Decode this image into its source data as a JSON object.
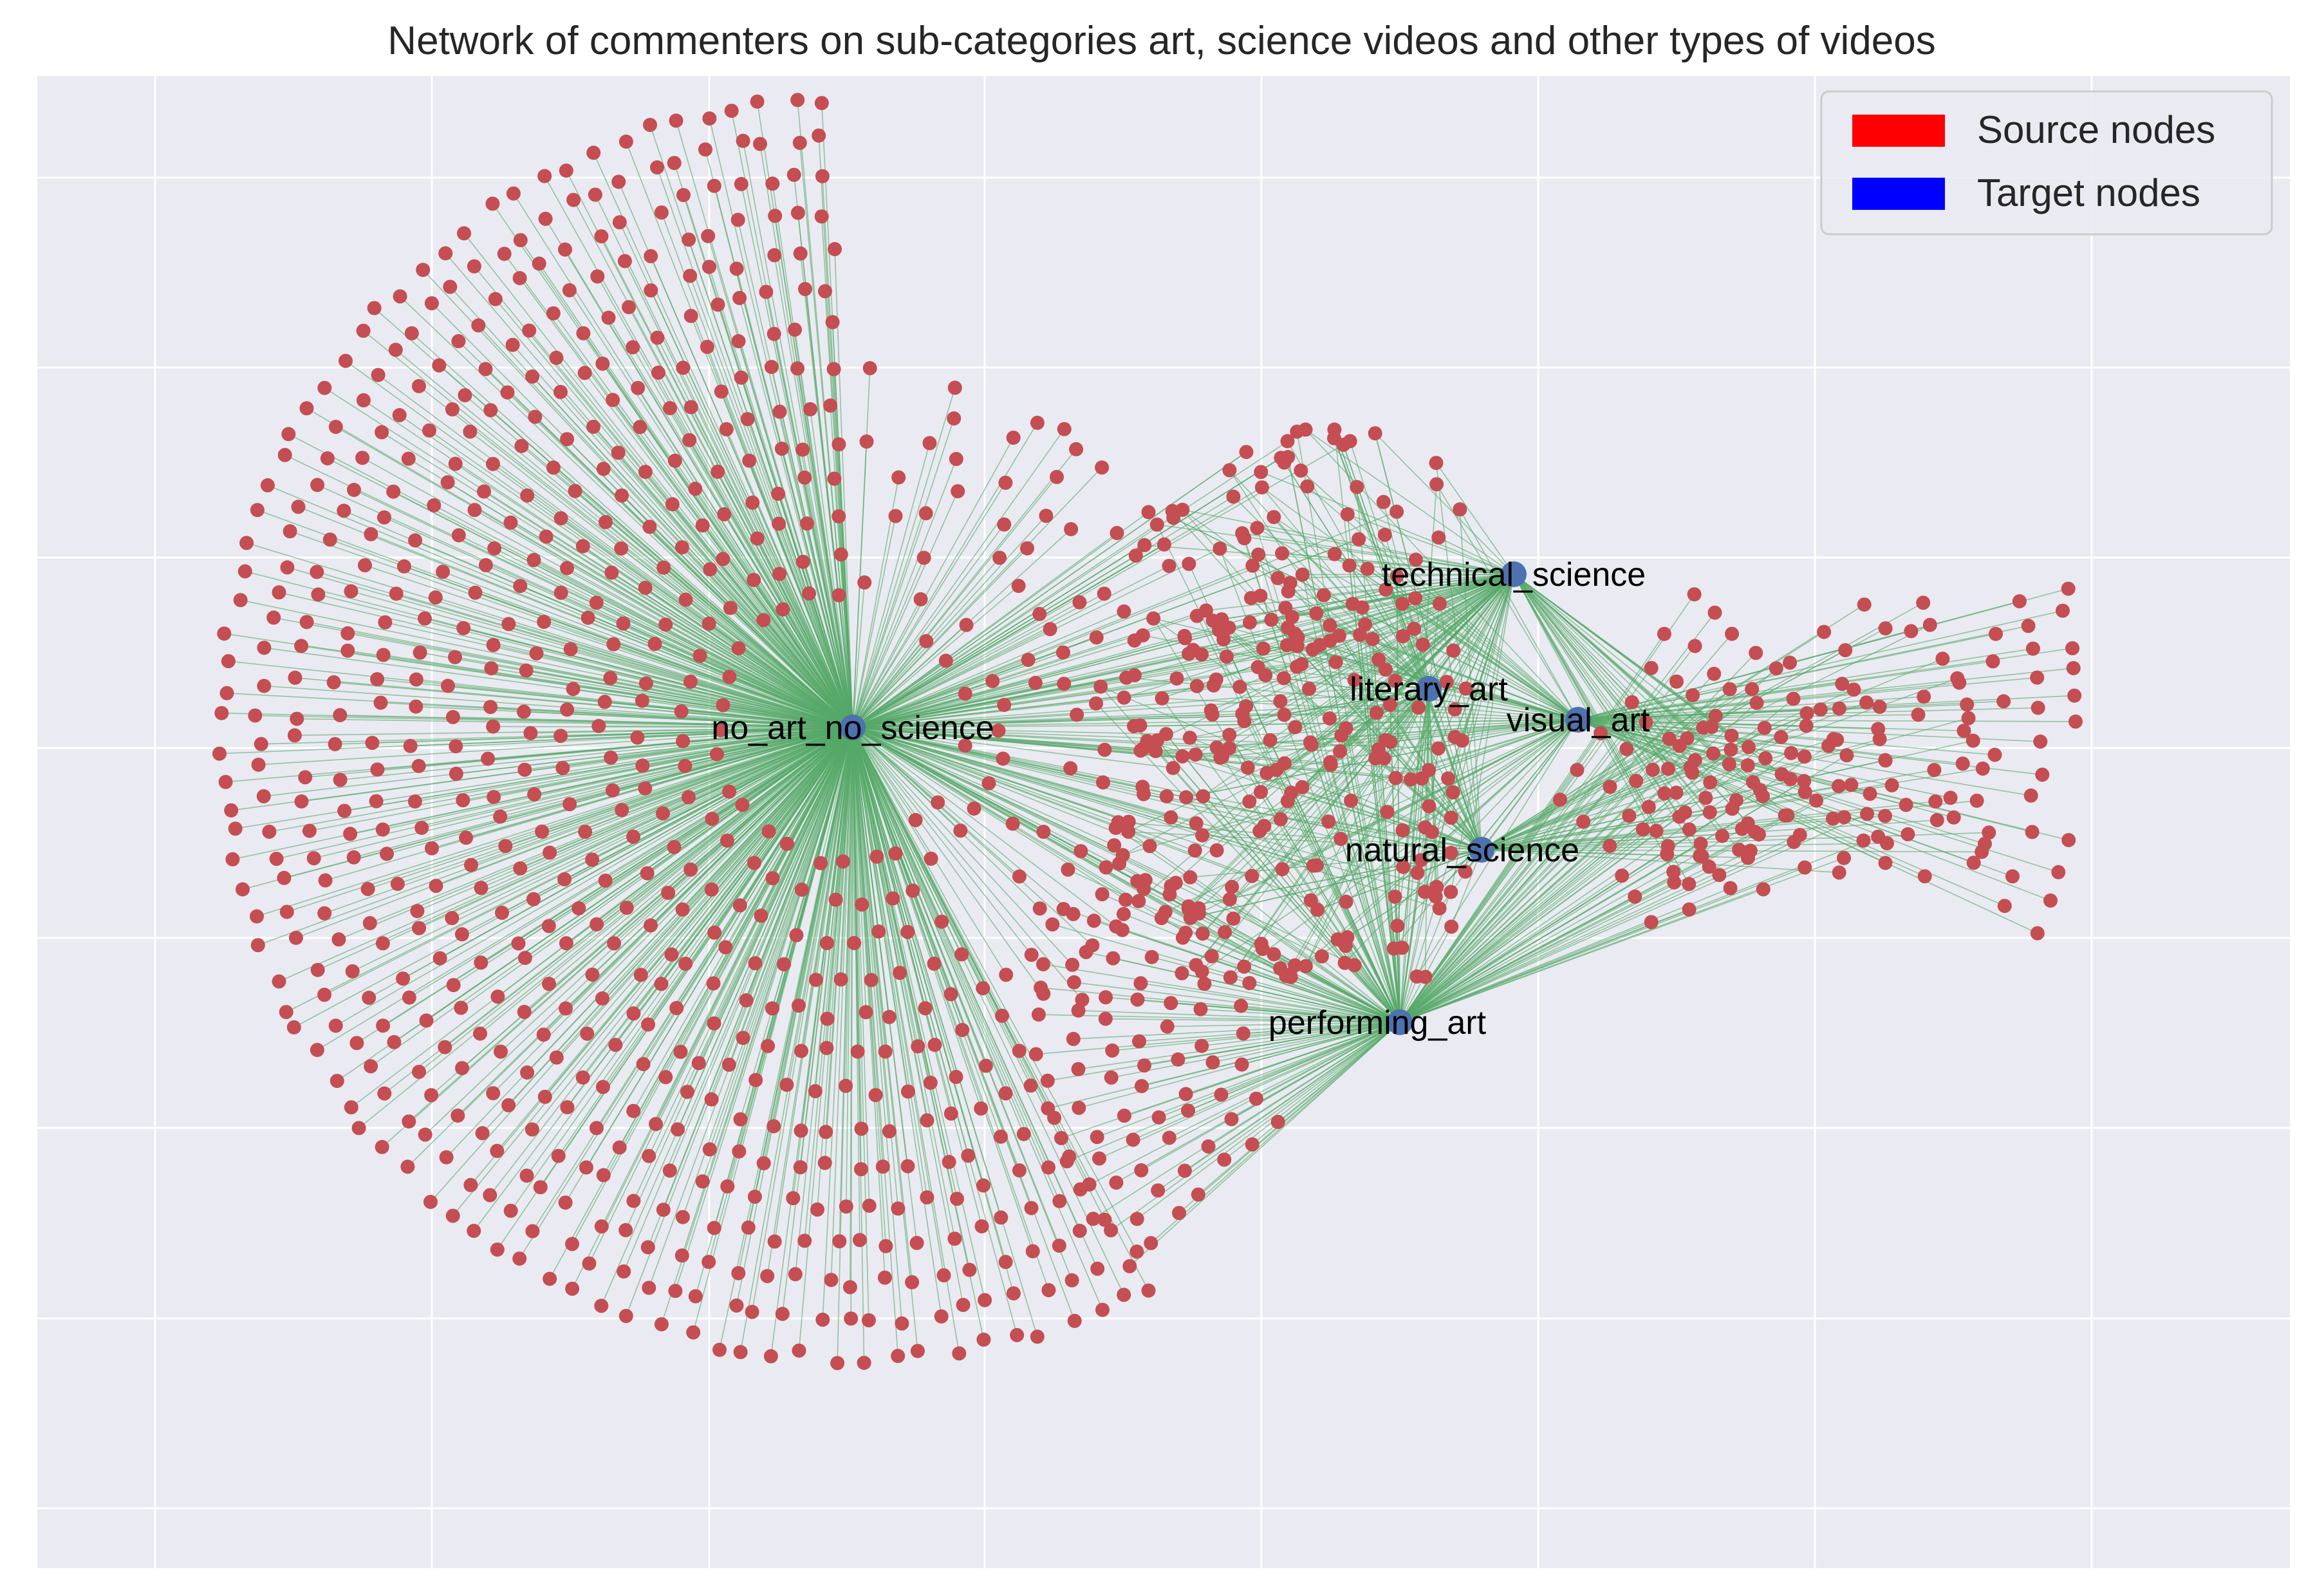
{
  "chart_data": {
    "type": "network",
    "title": "Network of commenters on sub-categories art, science videos and other types of videos",
    "grid": true,
    "legend_placement": "top-right",
    "legend": [
      {
        "label": "Source nodes",
        "color": "#ff0000"
      },
      {
        "label": "Target nodes",
        "color": "#0000ff"
      }
    ],
    "colors": {
      "background": "#eaeaf2",
      "grid": "#ffffff",
      "edge": "#55a868",
      "source_node": "#c44e52",
      "target_node": "#4c72b0"
    },
    "target_nodes": [
      {
        "id": "no_art_no_science"
      },
      {
        "id": "technical_science"
      },
      {
        "id": "literary_art"
      },
      {
        "id": "visual_art"
      },
      {
        "id": "natural_science"
      },
      {
        "id": "performing_art"
      }
    ]
  }
}
